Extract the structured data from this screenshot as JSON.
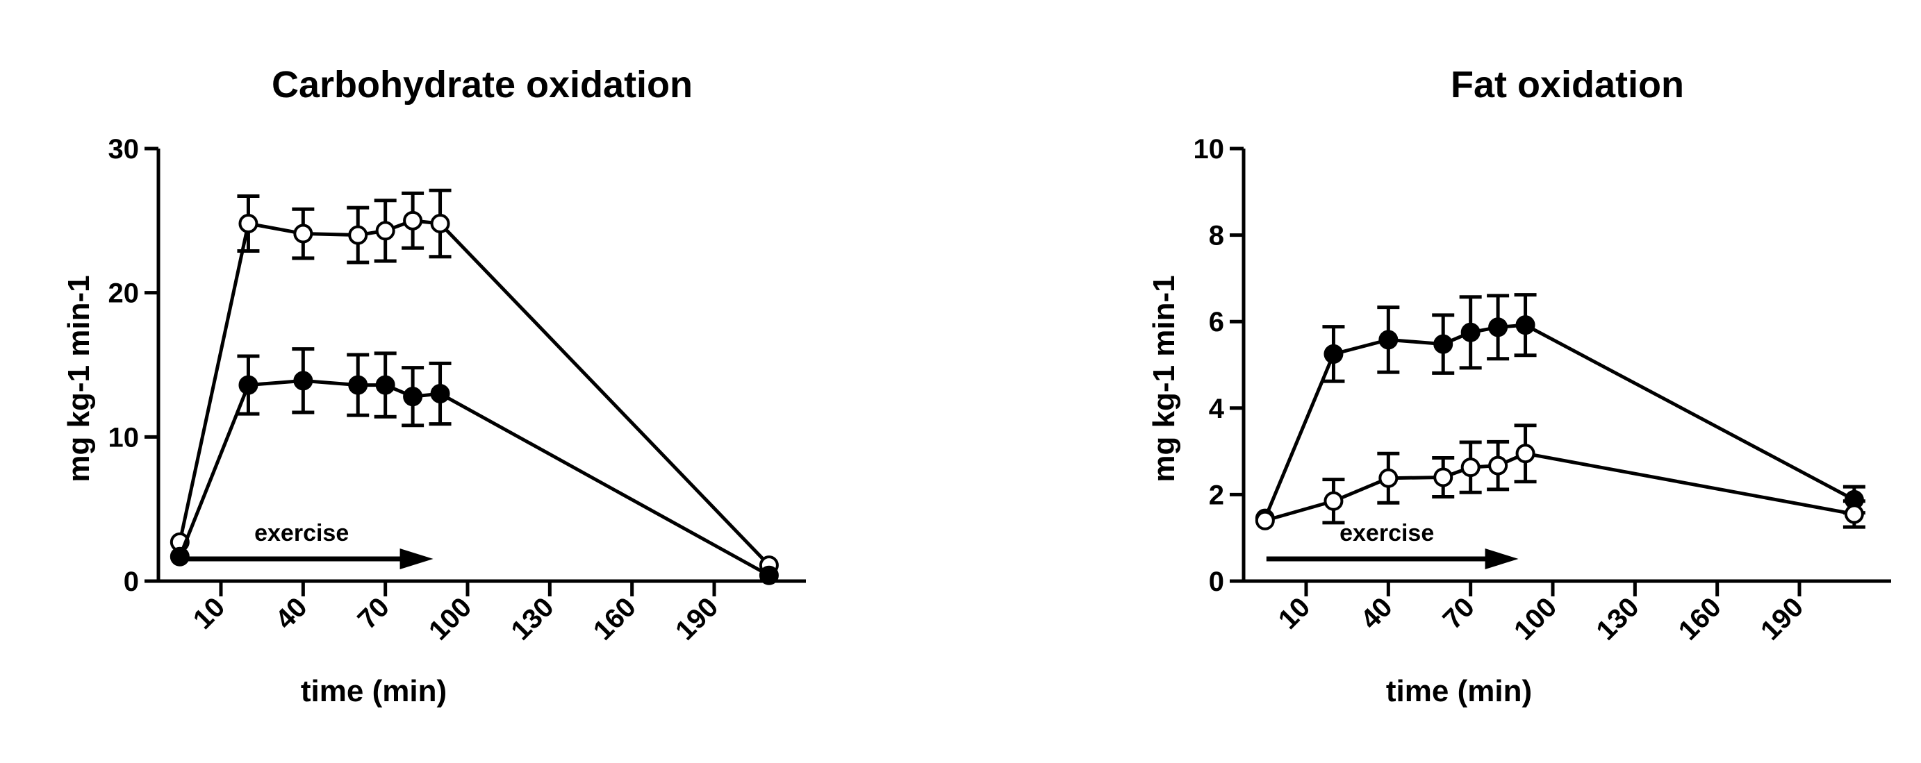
{
  "chart_data": [
    {
      "type": "line",
      "title": "Carbohydrate oxidation",
      "xlabel": "time  (min)",
      "ylabel": "mg kg-1 min-1",
      "xlim": [
        -10,
        220
      ],
      "ylim": [
        0,
        30
      ],
      "xticks": [
        10,
        40,
        70,
        100,
        130,
        160,
        190
      ],
      "yticks": [
        0,
        10,
        20,
        30
      ],
      "grid": false,
      "annotation": {
        "text": "exercise",
        "arrow_from": -5,
        "arrow_to": 90
      },
      "series": [
        {
          "marker": "open-circle",
          "x": [
            -5,
            20,
            40,
            60,
            70,
            80,
            90,
            210
          ],
          "y": [
            2.7,
            24.8,
            24.1,
            24.0,
            24.3,
            25.0,
            24.8,
            1.1
          ],
          "err": [
            0,
            1.9,
            1.7,
            1.9,
            2.1,
            1.9,
            2.3,
            0
          ]
        },
        {
          "marker": "filled-circle",
          "x": [
            -5,
            20,
            40,
            60,
            70,
            80,
            90,
            210
          ],
          "y": [
            1.7,
            13.6,
            13.9,
            13.6,
            13.6,
            12.8,
            13.0,
            0.4
          ],
          "err": [
            0,
            2.0,
            2.2,
            2.1,
            2.2,
            2.0,
            2.1,
            0
          ]
        }
      ]
    },
    {
      "type": "line",
      "title": "Fat oxidation",
      "xlabel": "time  (min)",
      "ylabel": "mg kg-1 min-1",
      "xlim": [
        -10,
        220
      ],
      "ylim": [
        0,
        10
      ],
      "xticks": [
        10,
        40,
        70,
        100,
        130,
        160,
        190
      ],
      "yticks": [
        0,
        2,
        4,
        6,
        8,
        10
      ],
      "grid": false,
      "annotation": {
        "text": "exercise",
        "arrow_from": -5,
        "arrow_to": 90
      },
      "series": [
        {
          "marker": "filled-circle",
          "x": [
            -5,
            20,
            40,
            60,
            70,
            80,
            90,
            210
          ],
          "y": [
            1.45,
            5.25,
            5.58,
            5.48,
            5.75,
            5.87,
            5.92,
            1.88
          ],
          "err": [
            0,
            0.63,
            0.75,
            0.67,
            0.82,
            0.73,
            0.7,
            0.3
          ]
        },
        {
          "marker": "open-circle",
          "x": [
            -5,
            20,
            40,
            60,
            70,
            80,
            90,
            210
          ],
          "y": [
            1.4,
            1.85,
            2.38,
            2.4,
            2.63,
            2.67,
            2.95,
            1.55
          ],
          "err": [
            0,
            0.5,
            0.57,
            0.45,
            0.58,
            0.55,
            0.65,
            0.3
          ]
        }
      ]
    }
  ]
}
